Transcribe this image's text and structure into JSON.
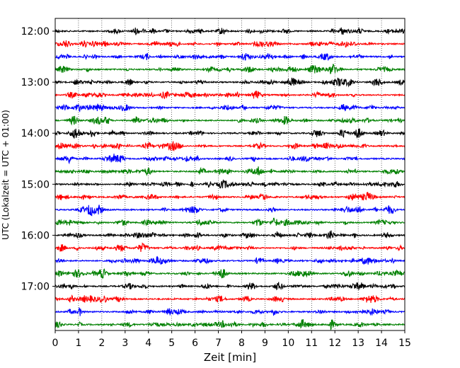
{
  "chart_data": {
    "type": "line",
    "title": "",
    "xlabel": "Zeit  [min]",
    "ylabel": "UTC (Lokalzeit = UTC + 01:00)",
    "xlim": [
      0,
      15
    ],
    "x_ticks": [
      "0",
      "1",
      "2",
      "3",
      "4",
      "5",
      "6",
      "7",
      "8",
      "9",
      "10",
      "11",
      "12",
      "13",
      "14",
      "15"
    ],
    "y_ticks": [
      "12:00",
      "13:00",
      "14:00",
      "15:00",
      "16:00",
      "17:00"
    ],
    "ylim": [
      "11:45",
      "17:52"
    ],
    "row_interval_min": 15,
    "trace_start_times": [
      "12:00",
      "12:15",
      "12:30",
      "12:45",
      "13:00",
      "13:15",
      "13:30",
      "13:45",
      "14:00",
      "14:15",
      "14:30",
      "14:45",
      "15:00",
      "15:15",
      "15:30",
      "15:45",
      "16:00",
      "16:15",
      "16:30",
      "16:45",
      "17:00",
      "17:15",
      "17:30",
      "17:45"
    ],
    "trace_colors": [
      "#000000",
      "#ff0000",
      "#0000ff",
      "#008000"
    ],
    "grid": "vertical dotted lines at each minute",
    "legend": "none"
  }
}
